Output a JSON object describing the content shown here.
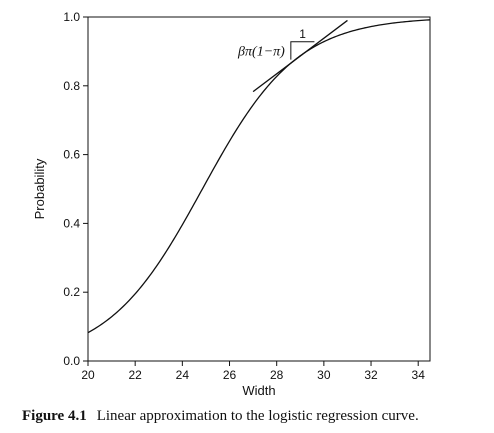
{
  "chart_data": {
    "type": "line",
    "title": "",
    "xlabel": "Width",
    "ylabel": "Probability",
    "xlim": [
      20,
      34.5
    ],
    "ylim": [
      0.0,
      1.0
    ],
    "xticks": [
      "20",
      "22",
      "24",
      "26",
      "28",
      "30",
      "32",
      "34"
    ],
    "yticks": [
      "0.0",
      "0.2",
      "0.4",
      "0.6",
      "0.8",
      "1.0"
    ],
    "grid": false,
    "series": [
      {
        "kind": "logistic-curve",
        "alpha": -12.35,
        "beta": 0.497
      },
      {
        "kind": "tangent-line",
        "x": [
          27.0,
          31.0
        ],
        "y": [
          0.783,
          0.99
        ]
      }
    ],
    "annotations": {
      "slope_label": "βπ(1−π)",
      "run_label": "1",
      "slope_triangle": {
        "x": [
          28.6,
          29.6
        ],
        "y": [
          0.876,
          0.928
        ]
      }
    }
  },
  "caption": {
    "number": "Figure 4.1",
    "text": "Linear approximation to the logistic regression curve."
  }
}
